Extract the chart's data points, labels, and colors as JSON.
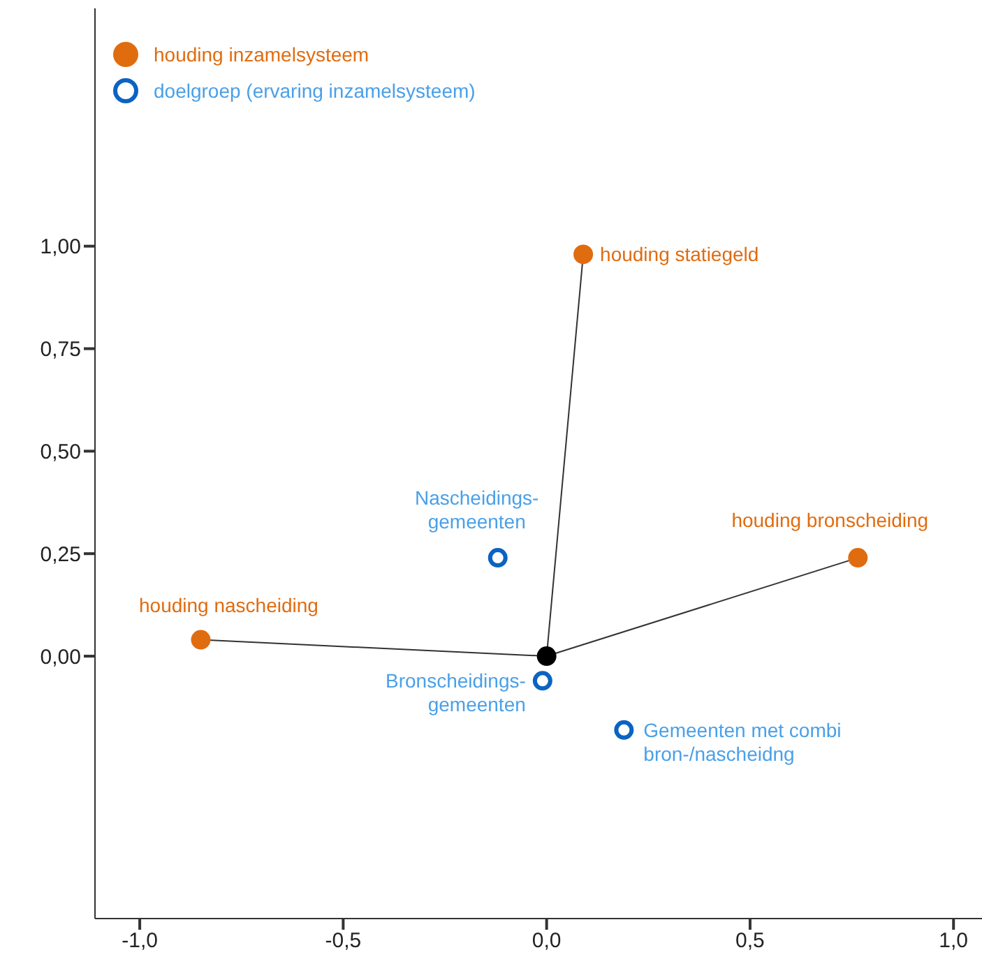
{
  "chart_data": {
    "type": "scatter",
    "xlim": [
      -1.11,
      1.07
    ],
    "ylim": [
      -0.64,
      1.58
    ],
    "xticks": [
      {
        "value": -1,
        "label": "-1,0"
      },
      {
        "value": -0.5,
        "label": "-0,5"
      },
      {
        "value": 0,
        "label": "0,0"
      },
      {
        "value": 0.5,
        "label": "0,5"
      },
      {
        "value": 1,
        "label": "1,0"
      }
    ],
    "yticks": [
      {
        "value": 0,
        "label": "0,00"
      },
      {
        "value": 0.25,
        "label": "0,25"
      },
      {
        "value": 0.5,
        "label": "0,50"
      },
      {
        "value": 0.75,
        "label": "0,75"
      },
      {
        "value": 1,
        "label": "1,00"
      }
    ],
    "legend": "top left",
    "marker": "circle",
    "series": [
      {
        "type": "line",
        "color": "#333333",
        "x": [
          0,
          0.09
        ],
        "values": [
          0,
          0.98
        ],
        "marker": "none"
      },
      {
        "type": "line",
        "color": "#333333",
        "x": [
          0,
          0.765
        ],
        "values": [
          0,
          0.24
        ],
        "marker": "none"
      },
      {
        "type": "line",
        "color": "#333333",
        "x": [
          0,
          -0.85
        ],
        "values": [
          0,
          0.04
        ],
        "marker": "none"
      },
      {
        "name": "houding inzamelsysteem",
        "color": "#e06c10",
        "x": [
          0.09,
          0.765,
          -0.85
        ],
        "values": [
          0.98,
          0.24,
          0.04
        ]
      },
      {
        "name": "doelgroep (ervaring inzamelsysteem)",
        "color": "#0b63c2",
        "x": [
          -0.12,
          -0.01,
          0.19
        ],
        "values": [
          0.24,
          -0.06,
          -0.18
        ]
      },
      {
        "color": "#000000",
        "x": [
          0
        ],
        "values": [
          0
        ]
      }
    ],
    "annotations": [
      {
        "text": "houding statiegeld",
        "x": 0.09,
        "y": 0.98
      },
      {
        "text": "houding bronscheiding",
        "x": 0.765,
        "y": 0.24
      },
      {
        "text": "houding nascheiding",
        "x": -0.85,
        "y": 0.04
      },
      {
        "text": "Nascheidings-\ngemeenten",
        "x": -0.12,
        "y": 0.24
      },
      {
        "text": "Bronscheidings-\ngemeenten",
        "x": -0.01,
        "y": -0.06
      },
      {
        "text": "Gemeenten met combi\nbron-/nascheidng",
        "x": 0.19,
        "y": -0.18
      }
    ]
  }
}
